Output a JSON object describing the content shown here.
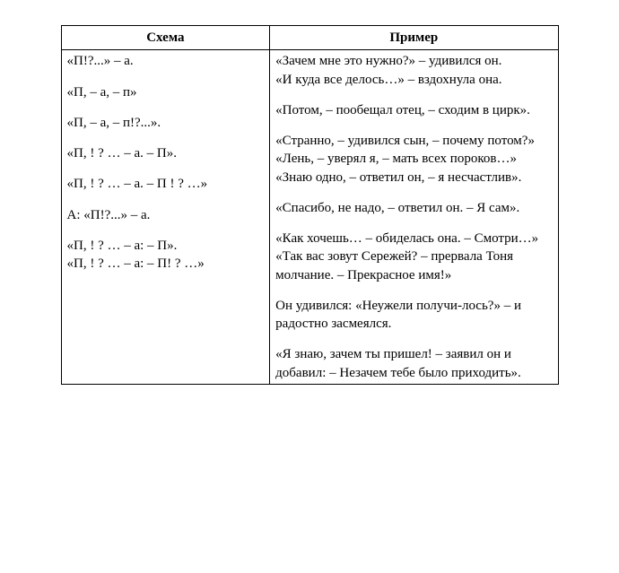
{
  "headers": {
    "schema": "Схема",
    "example": "Пример"
  },
  "rows": [
    {
      "schema": [
        "«П!?...» – а."
      ],
      "example": [
        "«Зачем мне это нужно?» – удивился он.",
        "«И куда все делось…» – вздохнула она."
      ]
    },
    {
      "schema": [
        "«П, – а, – п»"
      ],
      "example": [
        "«Потом, – пообещал отец, – сходим в цирк»."
      ]
    },
    {
      "schema": [
        "«П, – а, – п!?...»."
      ],
      "example": [
        "«Странно, – удивился сын, – почему потом?»",
        "«Лень, – уверял я, – мать всех пороков…»",
        "«Знаю одно, – ответил он, – я несчастлив»."
      ]
    },
    {
      "schema": [
        "«П, ! ? … – а. – П»."
      ],
      "example": [
        "«Спасибо, не надо, – ответил он. – Я сам»."
      ]
    },
    {
      "schema": [
        "«П, ! ? … – а. – П ! ? …»"
      ],
      "example": [
        "«Как хочешь… – обиделась она. – Смотри…»",
        "«Так вас зовут Сережей? – прервала Тоня молчание. – Прекрасное имя!»"
      ]
    },
    {
      "schema": [
        "А: «П!?...» – а."
      ],
      "example": [
        "Он удивился: «Неужели получи-лось?» – и радостно засмеялся."
      ]
    },
    {
      "schema": [
        "«П, ! ? … – а: – П».",
        "«П, ! ? … – а: – П! ? …»"
      ],
      "example": [
        "«Я знаю, зачем ты пришел! – заявил он и добавил: – Незачем тебе было приходить»."
      ]
    }
  ],
  "style": {
    "font_family": "Times New Roman",
    "font_size_pt": 11,
    "border_color": "#000000",
    "background_color": "#ffffff",
    "text_color": "#000000"
  }
}
